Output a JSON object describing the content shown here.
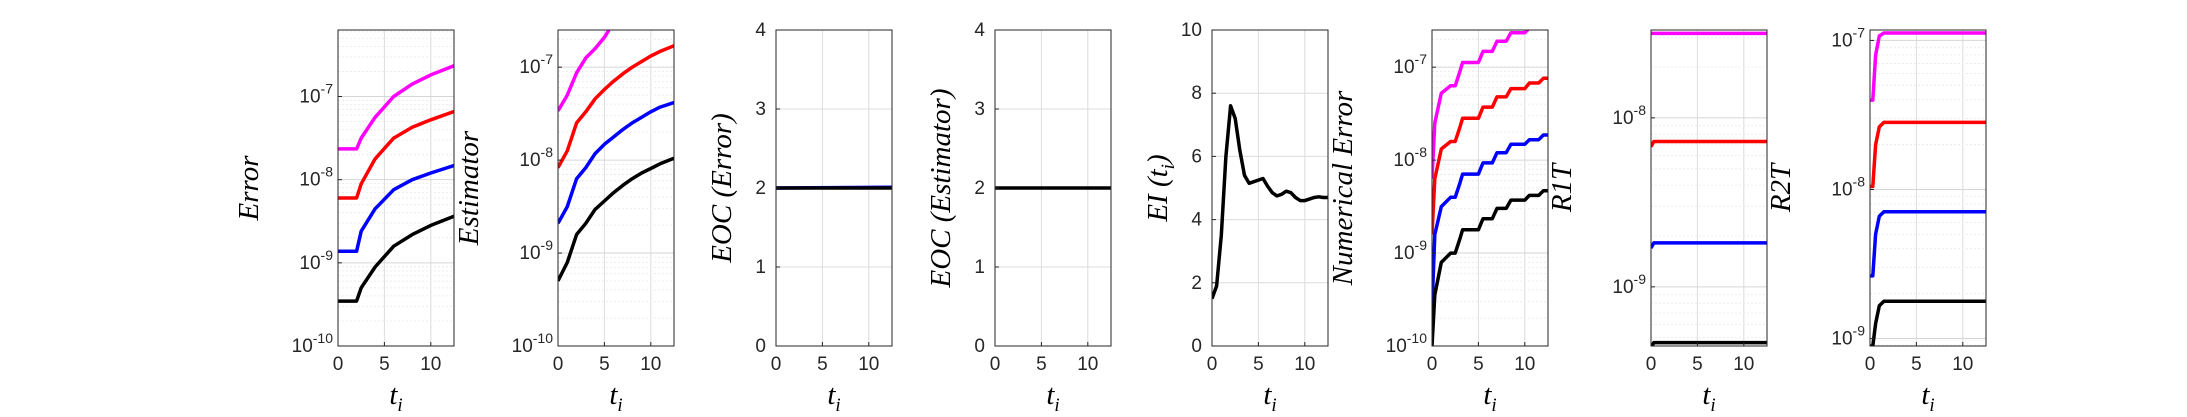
{
  "chart_data": [
    {
      "type": "line",
      "scale": "log",
      "ylabel": "Error",
      "xlabel": "t",
      "xlabel_sub": "i",
      "xlim": [
        0,
        12.5
      ],
      "ylim_exp": [
        -10,
        -6.2
      ],
      "xticks": [
        "0",
        "5",
        "10"
      ],
      "yticks_exp": [
        -10,
        -9,
        -8,
        -7
      ],
      "grid": true,
      "series": [
        {
          "color": "#ff00ff",
          "x": [
            0,
            2,
            2.5,
            4,
            6,
            8,
            10,
            12.5
          ],
          "y_exp": [
            -7.63,
            -7.63,
            -7.5,
            -7.25,
            -7.0,
            -6.85,
            -6.74,
            -6.63
          ]
        },
        {
          "color": "#ff0000",
          "x": [
            0,
            2,
            2.5,
            4,
            6,
            8,
            10,
            12.5
          ],
          "y_exp": [
            -8.22,
            -8.22,
            -8.05,
            -7.75,
            -7.5,
            -7.37,
            -7.28,
            -7.18
          ]
        },
        {
          "color": "#0000ff",
          "x": [
            0,
            2,
            2.5,
            4,
            6,
            8,
            10,
            12.5
          ],
          "y_exp": [
            -8.86,
            -8.86,
            -8.62,
            -8.35,
            -8.12,
            -8.0,
            -7.92,
            -7.83
          ]
        },
        {
          "color": "#000000",
          "x": [
            0,
            2,
            2.5,
            4,
            6,
            8,
            10,
            12.5
          ],
          "y_exp": [
            -9.46,
            -9.46,
            -9.3,
            -9.05,
            -8.8,
            -8.66,
            -8.55,
            -8.44
          ]
        }
      ]
    },
    {
      "type": "line",
      "scale": "log",
      "ylabel": "Estimator",
      "xlabel": "t",
      "xlabel_sub": "i",
      "xlim": [
        0,
        12.5
      ],
      "ylim_exp": [
        -10,
        -6.6
      ],
      "xticks": [
        "0",
        "5",
        "10"
      ],
      "yticks_exp": [
        -10,
        -9,
        -8,
        -7
      ],
      "grid": true,
      "series": [
        {
          "color": "#ff00ff",
          "x": [
            0,
            1,
            2,
            3,
            4,
            5,
            5.5
          ],
          "y_exp": [
            -7.47,
            -7.3,
            -7.06,
            -6.9,
            -6.8,
            -6.68,
            -6.6
          ]
        },
        {
          "color": "#ff0000",
          "x": [
            0,
            1,
            2,
            3,
            4,
            5,
            6,
            7,
            8,
            9,
            10,
            11,
            12.5
          ],
          "y_exp": [
            -8.08,
            -7.9,
            -7.6,
            -7.48,
            -7.34,
            -7.24,
            -7.15,
            -7.07,
            -7.0,
            -6.94,
            -6.88,
            -6.83,
            -6.77
          ]
        },
        {
          "color": "#0000ff",
          "x": [
            0,
            1,
            2,
            3,
            4,
            5,
            6,
            7,
            8,
            9,
            10,
            11,
            12.5
          ],
          "y_exp": [
            -8.68,
            -8.5,
            -8.2,
            -8.08,
            -7.93,
            -7.83,
            -7.75,
            -7.67,
            -7.6,
            -7.54,
            -7.48,
            -7.43,
            -7.38
          ]
        },
        {
          "color": "#000000",
          "x": [
            0,
            1,
            2,
            3,
            4,
            5,
            6,
            7,
            8,
            9,
            10,
            11,
            12.5
          ],
          "y_exp": [
            -9.3,
            -9.1,
            -8.8,
            -8.68,
            -8.53,
            -8.44,
            -8.35,
            -8.27,
            -8.2,
            -8.14,
            -8.09,
            -8.04,
            -7.98
          ]
        }
      ]
    },
    {
      "type": "line",
      "scale": "linear",
      "ylabel": "EOC (Error)",
      "xlabel": "t",
      "xlabel_sub": "i",
      "xlim": [
        0,
        12.5
      ],
      "ylim": [
        0,
        4
      ],
      "xticks": [
        "0",
        "5",
        "10"
      ],
      "yticks": [
        0,
        1,
        2,
        3,
        4
      ],
      "grid": true,
      "series": [
        {
          "color": "#0000ff",
          "x": [
            0,
            12.5
          ],
          "y": [
            2.0,
            2.01
          ]
        },
        {
          "color": "#000000",
          "x": [
            0,
            12.5
          ],
          "y": [
            2.0,
            2.0
          ]
        }
      ]
    },
    {
      "type": "line",
      "scale": "linear",
      "ylabel": "EOC (Estimator)",
      "xlabel": "t",
      "xlabel_sub": "i",
      "xlim": [
        0,
        12.5
      ],
      "ylim": [
        0,
        4
      ],
      "xticks": [
        "0",
        "5",
        "10"
      ],
      "yticks": [
        0,
        1,
        2,
        3,
        4
      ],
      "grid": true,
      "series": [
        {
          "color": "#000000",
          "x": [
            0,
            12.5
          ],
          "y": [
            2.0,
            2.0
          ]
        }
      ]
    },
    {
      "type": "line",
      "scale": "linear",
      "ylabel": "EI (t_i)",
      "xlabel": "t",
      "xlabel_sub": "i",
      "xlim": [
        0,
        12.5
      ],
      "ylim": [
        0,
        10
      ],
      "xticks": [
        "0",
        "5",
        "10"
      ],
      "yticks": [
        0,
        2,
        4,
        6,
        8,
        10
      ],
      "grid": true,
      "series": [
        {
          "color": "#000000",
          "x": [
            0,
            0.5,
            1,
            1.5,
            2,
            2.5,
            3,
            3.5,
            4,
            4.5,
            5,
            5.5,
            6,
            6.5,
            7,
            7.5,
            8,
            8.5,
            9,
            9.5,
            10,
            10.5,
            11,
            11.5,
            12,
            12.5
          ],
          "y": [
            1.5,
            1.9,
            3.5,
            6.0,
            7.6,
            7.2,
            6.2,
            5.4,
            5.15,
            5.2,
            5.25,
            5.3,
            5.05,
            4.85,
            4.75,
            4.8,
            4.9,
            4.85,
            4.7,
            4.6,
            4.6,
            4.65,
            4.7,
            4.72,
            4.7,
            4.7
          ]
        }
      ]
    },
    {
      "type": "line",
      "scale": "log",
      "ylabel": "Numerical Error",
      "xlabel": "t",
      "xlabel_sub": "i",
      "xlim": [
        0,
        12.5
      ],
      "ylim_exp": [
        -10,
        -6.6
      ],
      "xticks": [
        "0",
        "5",
        "10"
      ],
      "yticks_exp": [
        -10,
        -9,
        -8,
        -7
      ],
      "grid": true,
      "series": [
        {
          "color": "#ff00ff",
          "x": [
            0,
            0.3,
            1,
            2,
            2.5,
            3,
            3.3,
            5,
            5.5,
            6.5,
            7,
            8,
            8.5,
            10,
            10.5,
            11.5,
            12,
            12.5
          ],
          "y_exp": [
            -8.2,
            -7.6,
            -7.28,
            -7.2,
            -7.2,
            -7.05,
            -6.95,
            -6.95,
            -6.83,
            -6.83,
            -6.72,
            -6.72,
            -6.63,
            -6.63,
            -6.58,
            -6.58,
            -6.53,
            -6.53
          ]
        },
        {
          "color": "#ff0000",
          "x": [
            0,
            0.3,
            1,
            2,
            2.5,
            3,
            3.3,
            5,
            5.5,
            6.5,
            7,
            8,
            8.5,
            10,
            10.5,
            11.5,
            12,
            12.5
          ],
          "y_exp": [
            -8.8,
            -8.2,
            -7.88,
            -7.8,
            -7.8,
            -7.65,
            -7.55,
            -7.55,
            -7.43,
            -7.43,
            -7.32,
            -7.32,
            -7.23,
            -7.23,
            -7.17,
            -7.17,
            -7.12,
            -7.12
          ]
        },
        {
          "color": "#0000ff",
          "x": [
            0,
            0.3,
            1,
            2,
            2.5,
            3,
            3.3,
            5,
            5.5,
            6.5,
            7,
            8,
            8.5,
            10,
            10.5,
            11.5,
            12,
            12.5
          ],
          "y_exp": [
            -9.6,
            -8.8,
            -8.5,
            -8.4,
            -8.4,
            -8.25,
            -8.15,
            -8.15,
            -8.03,
            -8.03,
            -7.92,
            -7.92,
            -7.83,
            -7.83,
            -7.78,
            -7.78,
            -7.73,
            -7.73
          ]
        },
        {
          "color": "#000000",
          "x": [
            0,
            0.3,
            1,
            2,
            2.5,
            3,
            3.3,
            5,
            5.5,
            6.5,
            7,
            8,
            8.5,
            10,
            10.5,
            11.5,
            12,
            12.5
          ],
          "y_exp": [
            -10.0,
            -9.45,
            -9.1,
            -9.0,
            -9.0,
            -8.85,
            -8.75,
            -8.75,
            -8.63,
            -8.63,
            -8.52,
            -8.52,
            -8.43,
            -8.43,
            -8.38,
            -8.38,
            -8.33,
            -8.33
          ]
        }
      ]
    },
    {
      "type": "line",
      "scale": "log",
      "ylabel": "R1T",
      "xlabel": "t",
      "xlabel_sub": "i",
      "xlim": [
        0,
        12.5
      ],
      "ylim_exp": [
        -9.35,
        -7.48
      ],
      "xticks": [
        "0",
        "5",
        "10"
      ],
      "yticks_exp": [
        -9,
        -8
      ],
      "grid": true,
      "series": [
        {
          "color": "#ff00ff",
          "x": [
            0,
            12.5
          ],
          "y_exp": [
            -7.5,
            -7.5
          ]
        },
        {
          "color": "#ff0000",
          "x": [
            0,
            0.3,
            12.5
          ],
          "y_exp": [
            -8.17,
            -8.14,
            -8.14
          ]
        },
        {
          "color": "#0000ff",
          "x": [
            0,
            0.3,
            12.5
          ],
          "y_exp": [
            -8.77,
            -8.74,
            -8.74
          ]
        },
        {
          "color": "#000000",
          "x": [
            0,
            0.3,
            12.5
          ],
          "y_exp": [
            -9.36,
            -9.33,
            -9.33
          ]
        }
      ]
    },
    {
      "type": "line",
      "scale": "log",
      "ylabel": "R2T",
      "xlabel": "t",
      "xlabel_sub": "i",
      "xlim": [
        0,
        12.5
      ],
      "ylim_exp": [
        -9.05,
        -6.93
      ],
      "xticks": [
        "0",
        "5",
        "10"
      ],
      "yticks_exp": [
        -9,
        -8,
        -7
      ],
      "grid": true,
      "series": [
        {
          "color": "#ff00ff",
          "x": [
            0,
            0.3,
            0.6,
            1.0,
            1.5,
            12.5
          ],
          "y_exp": [
            -7.4,
            -7.4,
            -7.1,
            -6.97,
            -6.95,
            -6.95
          ]
        },
        {
          "color": "#ff0000",
          "x": [
            0,
            0.3,
            0.6,
            1.0,
            1.5,
            12.5
          ],
          "y_exp": [
            -7.98,
            -7.98,
            -7.7,
            -7.58,
            -7.55,
            -7.55
          ]
        },
        {
          "color": "#0000ff",
          "x": [
            0,
            0.3,
            0.6,
            1.0,
            1.5,
            12.5
          ],
          "y_exp": [
            -8.58,
            -8.58,
            -8.3,
            -8.18,
            -8.15,
            -8.15
          ]
        },
        {
          "color": "#000000",
          "x": [
            0,
            0.3,
            0.6,
            1.0,
            1.5,
            12.5
          ],
          "y_exp": [
            -9.05,
            -9.05,
            -8.9,
            -8.78,
            -8.75,
            -8.75
          ]
        }
      ]
    }
  ]
}
